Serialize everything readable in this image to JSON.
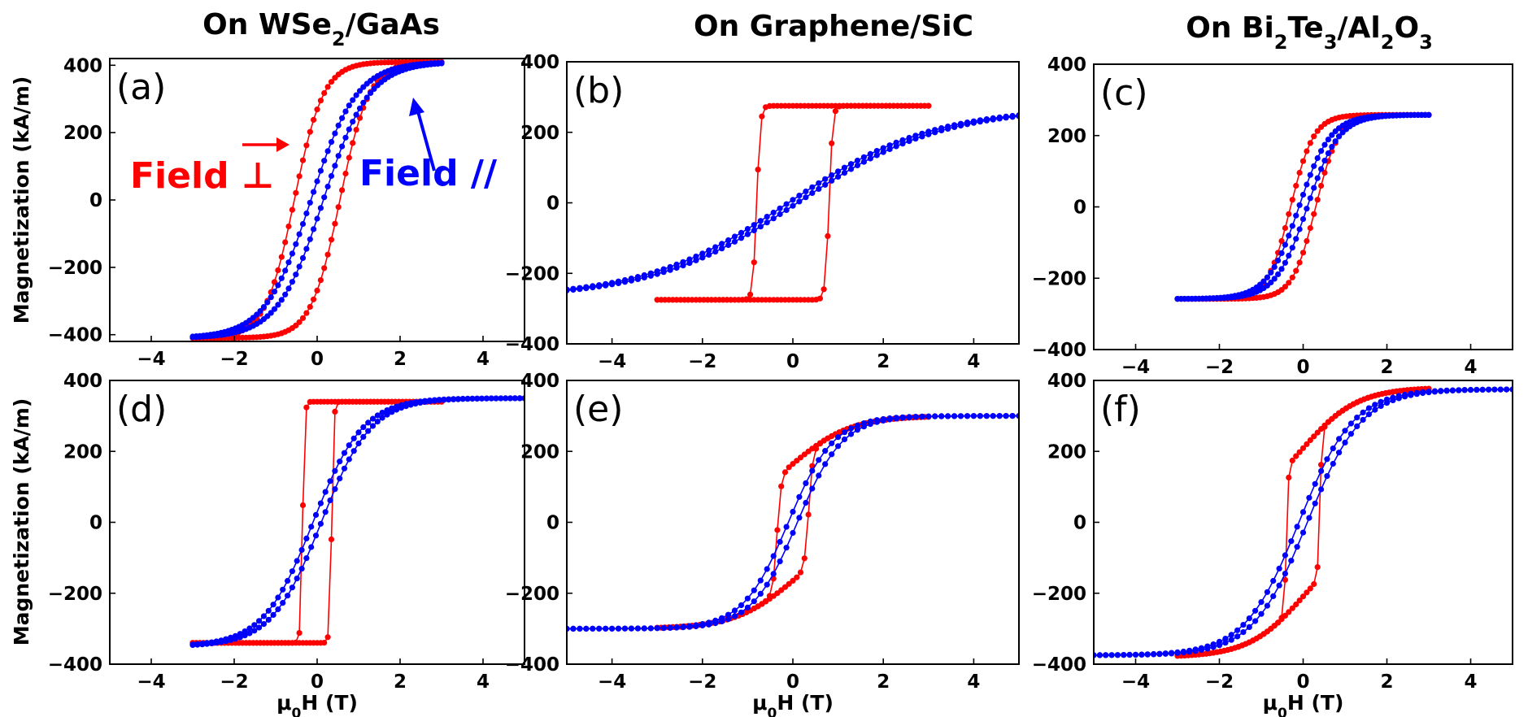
{
  "figure": {
    "column_titles": [
      {
        "prefix": "On WSe",
        "parts": [
          {
            "t": "On WSe",
            "s": 0
          },
          {
            "t": "2",
            "s": 1
          },
          {
            "t": "/GaAs",
            "s": 0
          }
        ]
      },
      {
        "prefix": "On Graphene/SiC",
        "parts": [
          {
            "t": "On Graphene/SiC",
            "s": 0
          }
        ]
      },
      {
        "prefix": "On Bi",
        "parts": [
          {
            "t": "On Bi",
            "s": 0
          },
          {
            "t": "2",
            "s": 1
          },
          {
            "t": "Te",
            "s": 0
          },
          {
            "t": "3",
            "s": 1
          },
          {
            "t": "/Al",
            "s": 0
          },
          {
            "t": "2",
            "s": 1
          },
          {
            "t": "O",
            "s": 0
          },
          {
            "t": "3",
            "s": 1
          }
        ]
      }
    ],
    "ylabel": "Magnetization (kA/m)",
    "xlabel_parts": [
      {
        "t": "μ",
        "s": 0
      },
      {
        "t": "0",
        "s": 1
      },
      {
        "t": "H (T)",
        "s": 0
      }
    ],
    "colors": {
      "perp": "#ff0000",
      "para": "#0000ff"
    },
    "annotations": {
      "perp_label": "Field ⊥",
      "para_label": "Field //"
    }
  },
  "chart_data": [
    {
      "type": "line",
      "panel_label": "(a)",
      "xlim": [
        -5,
        5
      ],
      "ylim": [
        -420,
        420
      ],
      "xticks": [
        -4,
        -2,
        0,
        2,
        4
      ],
      "yticks": [
        -400,
        -200,
        0,
        200,
        400
      ],
      "xlabel": "",
      "ylabel": "Magnetization (kA/m)",
      "series": [
        {
          "name": "Field ⊥",
          "color": "#ff0000",
          "loop": {
            "ms": 410,
            "hc": 0.55,
            "w": 0.7,
            "hmax": 3,
            "hmin": -3,
            "shape": "tanh"
          }
        },
        {
          "name": "Field //",
          "color": "#0000ff",
          "loop": {
            "ms": 410,
            "hc": 0.15,
            "w": 1.1,
            "hmax": 3,
            "hmin": -3,
            "shape": "tanh"
          }
        }
      ]
    },
    {
      "type": "line",
      "panel_label": "(b)",
      "xlim": [
        -5,
        5
      ],
      "ylim": [
        -400,
        400
      ],
      "xticks": [
        -4,
        -2,
        0,
        2,
        4
      ],
      "yticks": [
        -400,
        -200,
        0,
        200,
        400
      ],
      "xlabel": "",
      "ylabel": "",
      "series": [
        {
          "name": "Field ⊥",
          "color": "#ff0000",
          "loop": {
            "ms": 275,
            "hc": 0.8,
            "w": 0.08,
            "hmax": 3,
            "hmin": -3,
            "shape": "tanh"
          }
        },
        {
          "name": "Field //",
          "color": "#0000ff",
          "loop": {
            "ms": 270,
            "hc": 0.1,
            "w": 3.2,
            "hmax": 5,
            "hmin": -5,
            "shape": "tanh"
          }
        }
      ]
    },
    {
      "type": "line",
      "panel_label": "(c)",
      "xlim": [
        -5,
        5
      ],
      "ylim": [
        -400,
        400
      ],
      "xticks": [
        -4,
        -2,
        0,
        2,
        4
      ],
      "yticks": [
        -400,
        -200,
        0,
        200,
        400
      ],
      "xlabel": "",
      "ylabel": "",
      "series": [
        {
          "name": "Field ⊥",
          "color": "#ff0000",
          "loop": {
            "ms": 258,
            "hc": 0.3,
            "w": 0.55,
            "hmax": 3,
            "hmin": -3,
            "shape": "tanh"
          }
        },
        {
          "name": "Field //",
          "color": "#0000ff",
          "loop": {
            "ms": 258,
            "hc": 0.1,
            "w": 0.75,
            "hmax": 3,
            "hmin": -3,
            "shape": "tanh"
          }
        }
      ]
    },
    {
      "type": "line",
      "panel_label": "(d)",
      "xlim": [
        -5,
        5
      ],
      "ylim": [
        -400,
        400
      ],
      "xticks": [
        -4,
        -2,
        0,
        2,
        4
      ],
      "yticks": [
        -400,
        -200,
        0,
        200,
        400
      ],
      "xlabel": "μ0H (T)",
      "ylabel": "Magnetization (kA/m)",
      "series": [
        {
          "name": "Field ⊥",
          "color": "#ff0000",
          "loop": {
            "ms": 340,
            "hc": 0.35,
            "w": 0.05,
            "hmax": 3,
            "hmin": -3,
            "shape": "tanh"
          }
        },
        {
          "name": "Field //",
          "color": "#0000ff",
          "loop": {
            "ms": 350,
            "hc": 0.1,
            "w": 1.2,
            "hmax": 5,
            "hmin": -3,
            "shape": "tanh"
          }
        }
      ]
    },
    {
      "type": "line",
      "panel_label": "(e)",
      "xlim": [
        -5,
        5
      ],
      "ylim": [
        -400,
        400
      ],
      "xticks": [
        -4,
        -2,
        0,
        2,
        4
      ],
      "yticks": [
        -400,
        -200,
        0,
        200,
        400
      ],
      "xlabel": "μ0H (T)",
      "ylabel": "",
      "series": [
        {
          "name": "Field ⊥",
          "color": "#ff0000",
          "loop": {
            "ms": 300,
            "hc": 0.35,
            "w": 0.09,
            "hmax": 3,
            "hmin": -3,
            "shape": "hybrid"
          }
        },
        {
          "name": "Field //",
          "color": "#0000ff",
          "loop": {
            "ms": 300,
            "hc": 0.1,
            "w": 1.0,
            "hmax": 5,
            "hmin": -5,
            "shape": "tanh"
          }
        }
      ]
    },
    {
      "type": "line",
      "panel_label": "(f)",
      "xlim": [
        -5,
        5
      ],
      "ylim": [
        -400,
        400
      ],
      "xticks": [
        -4,
        -2,
        0,
        2,
        4
      ],
      "yticks": [
        -400,
        -200,
        0,
        200,
        400
      ],
      "xlabel": "μ0H (T)",
      "ylabel": "",
      "series": [
        {
          "name": "Field ⊥",
          "color": "#ff0000",
          "loop": {
            "ms": 380,
            "hc": 0.4,
            "w": 0.05,
            "hmax": 3,
            "hmin": -3,
            "shape": "hybrid"
          }
        },
        {
          "name": "Field //",
          "color": "#0000ff",
          "loop": {
            "ms": 375,
            "hc": 0.1,
            "w": 1.3,
            "hmax": 5,
            "hmin": -5,
            "shape": "tanh"
          }
        }
      ]
    }
  ]
}
